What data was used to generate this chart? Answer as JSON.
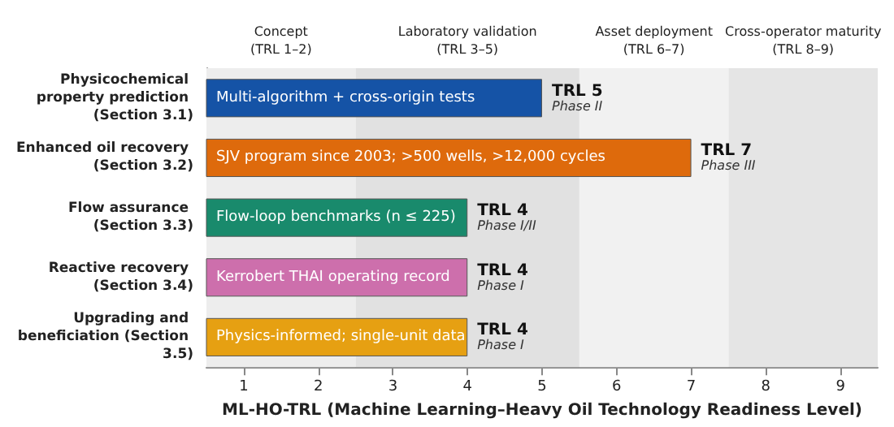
{
  "chart_data": {
    "type": "bar",
    "orientation": "horizontal",
    "xlabel": "ML-HO-TRL (Machine Learning–Heavy Oil Technology Readiness Level)",
    "categories": [
      "Physicochemical property prediction (Section 3.1)",
      "Enhanced oil recovery (Section 3.2)",
      "Flow assurance (Section 3.3)",
      "Reactive recovery (Section 3.4)",
      "Upgrading and beneficiation (Section 3.5)"
    ],
    "values": [
      5,
      7,
      4,
      4,
      4
    ],
    "colors": [
      "#1553a6",
      "#de6a0c",
      "#198a6c",
      "#cd6fac",
      "#e6a012"
    ],
    "value_labels": [
      "TRL 5\nPhase II",
      "TRL 7\nPhase III",
      "TRL 4\nPhase I/II",
      "TRL 4\nPhase I",
      "TRL 4\nPhase I"
    ],
    "xlim": [
      0.5,
      9.5
    ],
    "xticks": [
      1,
      2,
      3,
      4,
      5,
      6,
      7,
      8,
      9
    ],
    "bands": [
      {
        "axis": "x",
        "from": 0.5,
        "to": 2.5,
        "label": "Concept\n(TRL 1–2)",
        "color": "#ededed"
      },
      {
        "axis": "x",
        "from": 2.5,
        "to": 5.5,
        "label": "Laboratory validation\n(TRL 3–5)",
        "color": "#e1e1e1"
      },
      {
        "axis": "x",
        "from": 5.5,
        "to": 7.5,
        "label": "Asset deployment\n(TRL 6–7)",
        "color": "#f1f1f1"
      },
      {
        "axis": "x",
        "from": 7.5,
        "to": 9.5,
        "label": "Cross-operator maturity\n(TRL 8–9)",
        "color": "#e5e5e5"
      }
    ],
    "annotations": [
      {
        "text": "Multi-algorithm + cross-origin tests",
        "y": "Physicochemical property prediction (Section 3.1)"
      },
      {
        "text": "SJV program since 2003; >500 wells, >12,000 cycles",
        "y": "Enhanced oil recovery (Section 3.2)"
      },
      {
        "text": "Flow-loop benchmarks (n ≤ 225)",
        "y": "Flow assurance (Section 3.3)"
      },
      {
        "text": "Kerrobert THAI operating record",
        "y": "Reactive recovery (Section 3.4)"
      },
      {
        "text": "Physics-informed; single-unit data",
        "y": "Upgrading and beneficiation (Section 3.5)"
      }
    ]
  }
}
